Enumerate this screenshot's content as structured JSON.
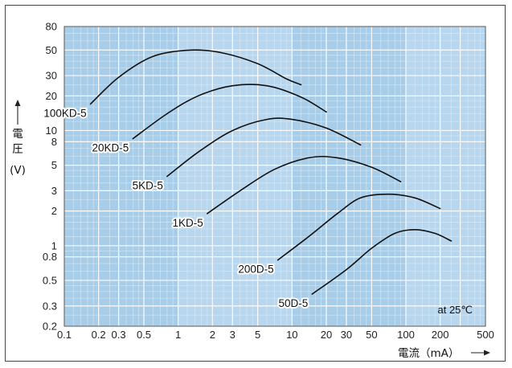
{
  "chart_data": {
    "type": "line",
    "x_scale": "log",
    "y_scale": "log",
    "xlim": [
      0.1,
      500
    ],
    "ylim": [
      0.2,
      80
    ],
    "x_ticks": [
      0.1,
      0.2,
      0.3,
      0.5,
      1,
      2,
      3,
      5,
      10,
      20,
      30,
      50,
      100,
      200,
      500
    ],
    "x_tick_labels": [
      "0.1",
      "0.2",
      "0.3",
      "0.5",
      "1",
      "2",
      "3",
      "5",
      "10",
      "20",
      "30",
      "50",
      "100",
      "200",
      "500"
    ],
    "y_ticks": [
      0.2,
      0.3,
      0.5,
      0.8,
      1,
      2,
      3,
      5,
      8,
      10,
      20,
      30,
      50,
      80
    ],
    "y_tick_labels": [
      "0.2",
      "0.3",
      "0.5",
      "0.8",
      "1",
      "2",
      "3",
      "5",
      "8",
      "10",
      "20",
      "30",
      "50",
      "80"
    ],
    "xlabel": "電流（mA）",
    "ylabel_chars": [
      "電",
      "圧"
    ],
    "ylabel_unit": "(V)",
    "annotation": "at 25℃",
    "grid": true,
    "plot_background": "#a8cde8",
    "line_color": "#111111",
    "series": [
      {
        "name": "100KD-5",
        "x": [
          0.17,
          0.3,
          0.6,
          1.3,
          2.5,
          5,
          9,
          12
        ],
        "y": [
          17,
          29,
          44,
          50,
          47,
          38,
          28,
          25
        ]
      },
      {
        "name": "20KD-5",
        "x": [
          0.4,
          0.8,
          1.5,
          3,
          6,
          12,
          20
        ],
        "y": [
          8.5,
          14,
          20,
          24.5,
          24.5,
          19.5,
          14.5
        ]
      },
      {
        "name": "5KD-5",
        "x": [
          0.8,
          1.5,
          3,
          6,
          10,
          20,
          40
        ],
        "y": [
          4,
          6.5,
          10,
          12.5,
          12.5,
          10.5,
          7.5
        ]
      },
      {
        "name": "1KD-5",
        "x": [
          1.8,
          3.5,
          7,
          14,
          25,
          50,
          90
        ],
        "y": [
          1.9,
          3,
          4.6,
          5.8,
          5.8,
          4.8,
          3.6
        ]
      },
      {
        "name": "200D-5",
        "x": [
          7.5,
          14,
          25,
          40,
          70,
          120,
          200
        ],
        "y": [
          0.75,
          1.2,
          1.9,
          2.6,
          2.8,
          2.6,
          2.1
        ]
      },
      {
        "name": "50D-5",
        "x": [
          15,
          30,
          50,
          80,
          120,
          180,
          250
        ],
        "y": [
          0.38,
          0.62,
          0.95,
          1.28,
          1.38,
          1.28,
          1.1
        ]
      }
    ]
  }
}
